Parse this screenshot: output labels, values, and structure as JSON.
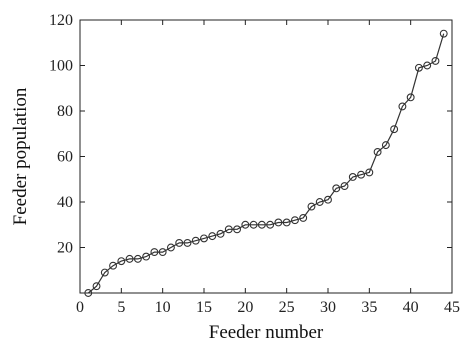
{
  "chart_data": {
    "type": "line",
    "title": "",
    "xlabel": "Feeder number",
    "ylabel": "Feeder population",
    "xlim": [
      0,
      45
    ],
    "ylim": [
      0,
      120
    ],
    "xticks": [
      0,
      5,
      10,
      15,
      20,
      25,
      30,
      35,
      40,
      45
    ],
    "yticks": [
      20,
      40,
      60,
      80,
      100,
      120
    ],
    "grid": false,
    "legend": "none",
    "marker": "open-circle",
    "line_color": "#333333",
    "series": [
      {
        "x": [
          1,
          2,
          3,
          4,
          5,
          6,
          7,
          8,
          9,
          10,
          11,
          12,
          13,
          14,
          15,
          16,
          17,
          18,
          19,
          20,
          21,
          22,
          23,
          24,
          25,
          26,
          27,
          28,
          29,
          30,
          31,
          32,
          33,
          34,
          35,
          36,
          37,
          38,
          39,
          40,
          41,
          42,
          43,
          44
        ],
        "y": [
          0,
          3,
          9,
          12,
          14,
          15,
          15,
          16,
          18,
          18,
          20,
          22,
          22,
          23,
          24,
          25,
          26,
          28,
          28,
          30,
          30,
          30,
          30,
          31,
          31,
          32,
          33,
          38,
          40,
          41,
          46,
          47,
          51,
          52,
          53,
          62,
          65,
          72,
          82,
          86,
          99,
          100,
          102,
          114
        ]
      }
    ]
  }
}
